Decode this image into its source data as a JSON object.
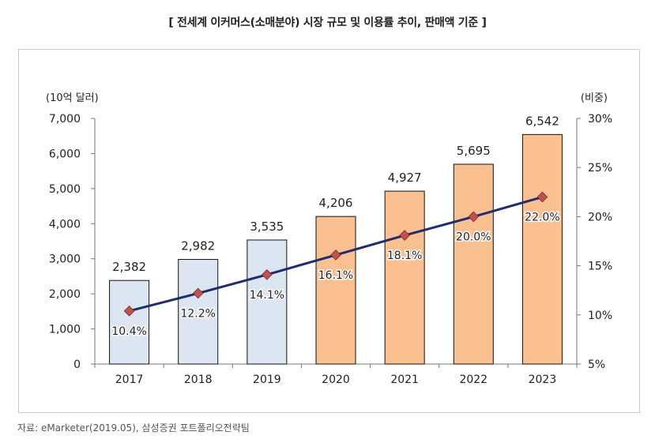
{
  "page": {
    "title": "[ 전세계 이커머스(소매분야) 시장 규모 및 이용률 추이, 판매액 기준 ]",
    "source": "자료: eMarketer(2019.05), 삼성증권 포트폴리오전략팀"
  },
  "chart_data": {
    "type": "bar",
    "categories": [
      "2017",
      "2018",
      "2019",
      "2020",
      "2021",
      "2022",
      "2023"
    ],
    "series": [
      {
        "name": "시장 규모",
        "type": "bar",
        "axis": "left",
        "values": [
          2382,
          2982,
          3535,
          4206,
          4927,
          5695,
          6542
        ],
        "labels": [
          "2,382",
          "2,982",
          "3,535",
          "4,206",
          "4,927",
          "5,695",
          "6,542"
        ],
        "colors": [
          "#dce6f2",
          "#dce6f2",
          "#dce6f2",
          "#fac090",
          "#fac090",
          "#fac090",
          "#fac090"
        ]
      },
      {
        "name": "이용률",
        "type": "line",
        "axis": "right",
        "values": [
          10.4,
          12.2,
          14.1,
          16.1,
          18.1,
          20.0,
          22.0
        ],
        "labels": [
          "10.4%",
          "12.2%",
          "14.1%",
          "16.1%",
          "18.1%",
          "20.0%",
          "22.0%"
        ],
        "color": "#1f2d6e",
        "marker_color": "#c0504d"
      }
    ],
    "y_left": {
      "label": "(10억 달러)",
      "min": 0,
      "max": 7000,
      "ticks": [
        0,
        1000,
        2000,
        3000,
        4000,
        5000,
        6000,
        7000
      ],
      "tick_labels": [
        "0",
        "1,000",
        "2,000",
        "3,000",
        "4,000",
        "5,000",
        "6,000",
        "7,000"
      ]
    },
    "y_right": {
      "label": "(비중)",
      "min": 5,
      "max": 30,
      "ticks": [
        5,
        10,
        15,
        20,
        25,
        30
      ],
      "tick_labels": [
        "5%",
        "10%",
        "15%",
        "20%",
        "25%",
        "30%"
      ]
    },
    "grid": false,
    "legend": "none"
  }
}
